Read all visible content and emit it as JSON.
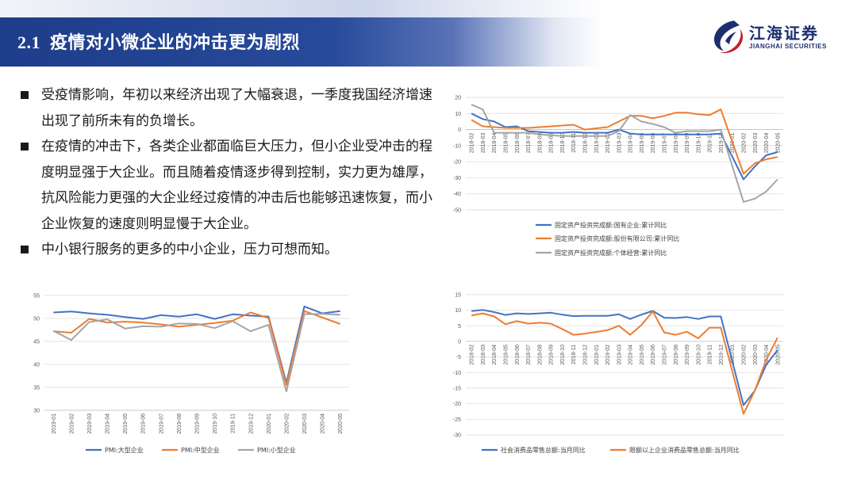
{
  "header": {
    "section_number": "2.1",
    "title": "疫情对小微企业的冲击更为剧烈"
  },
  "logo": {
    "name_cn": "江海证券",
    "name_en": "JIANGHAI SECURITIES"
  },
  "bullets": [
    "受疫情影响，年初以来经济出现了大幅衰退，一季度我国经济增速出现了前所未有的负增长。",
    "在疫情的冲击下，各类企业都面临巨大压力，但小企业受冲击的程度明显强于大企业。而且随着疫情逐步得到控制，实力更为雄厚，抗风险能力更强的大企业经过疫情的冲击后也能够迅速恢复，而小企业恢复的速度则明显慢于大企业。",
    "中小银行服务的更多的中小企业，压力可想而知。"
  ],
  "colors": {
    "blue": "#4472c4",
    "orange": "#ed7d31",
    "gray": "#a5a5a5",
    "header": "#1e3d8a"
  },
  "chart_data": [
    {
      "id": "fai",
      "type": "line",
      "title": "",
      "categories": [
        "2018-02",
        "2018-03",
        "2018-04",
        "2018-05",
        "2018-06",
        "2018-07",
        "2018-08",
        "2018-09",
        "2018-10",
        "2018-11",
        "2018-12",
        "2019-01",
        "2019-02",
        "2019-03",
        "2019-04",
        "2019-05",
        "2019-06",
        "2019-07",
        "2019-08",
        "2019-09",
        "2019-10",
        "2019-11",
        "2019-12",
        "2020-01",
        "2020-02",
        "2020-03",
        "2020-04",
        "2020-05"
      ],
      "ylim": [
        -50,
        20
      ],
      "yticks": [
        20,
        10,
        0,
        -10,
        -20,
        -30,
        -40,
        -50
      ],
      "x_axis_at": 0,
      "legend_position": "bottom",
      "series": [
        {
          "name": "固定资产投资完成额:国有企业:累计同比",
          "color": "#4472c4",
          "values": [
            10,
            6.5,
            5,
            1.5,
            2,
            -1,
            -1.5,
            -2,
            -2,
            -1.5,
            -2,
            null,
            -2,
            0,
            -2.5,
            -3,
            -3,
            -3,
            -3,
            -3,
            -3,
            -3,
            -2.5,
            null,
            -31,
            -23,
            -16,
            -14
          ]
        },
        {
          "name": "固定资产投资完成额:股份有限公司:累计同比",
          "color": "#ed7d31",
          "values": [
            6,
            2,
            1.5,
            1,
            1,
            1,
            1.5,
            2,
            2.5,
            3,
            0,
            null,
            1.5,
            5,
            8.5,
            8.5,
            7,
            8.5,
            10.5,
            10.5,
            9.5,
            9,
            12.5,
            null,
            -27.5,
            -21,
            -18.5,
            -17
          ]
        },
        {
          "name": "固定资产投资完成额:个体经营:累计同比",
          "color": "#a5a5a5",
          "values": [
            15.5,
            12.5,
            -2,
            -2,
            -2,
            -2,
            -3,
            -3.5,
            -4,
            -4,
            -4,
            null,
            -4,
            -1,
            9,
            5,
            3.5,
            1.5,
            -2,
            -1,
            -1,
            -1,
            0,
            null,
            -45,
            -43,
            -38.5,
            -31
          ]
        }
      ]
    },
    {
      "id": "pmi",
      "type": "line",
      "title": "",
      "categories": [
        "2019-01",
        "2019-02",
        "2019-03",
        "2019-04",
        "2019-05",
        "2019-06",
        "2019-07",
        "2019-08",
        "2019-09",
        "2019-10",
        "2019-11",
        "2019-12",
        "2020-01",
        "2020-02",
        "2020-03",
        "2020-04",
        "2020-05"
      ],
      "ylim": [
        30,
        55
      ],
      "yticks": [
        55,
        50,
        45,
        40,
        35,
        30
      ],
      "legend_position": "bottom",
      "series": [
        {
          "name": "PMI:大型企业",
          "color": "#4472c4",
          "values": [
            51.3,
            51.5,
            51.1,
            50.8,
            50.3,
            49.9,
            50.7,
            50.4,
            50.9,
            49.9,
            50.9,
            50.6,
            50.4,
            36.0,
            52.6,
            51.1,
            51.6
          ]
        },
        {
          "name": "PMI:中型企业",
          "color": "#ed7d31",
          "values": [
            47.2,
            46.9,
            49.9,
            49.1,
            49.3,
            49.1,
            48.7,
            48.2,
            48.6,
            49.0,
            49.5,
            51.3,
            50.1,
            35.5,
            51.6,
            50.2,
            48.8
          ]
        },
        {
          "name": "PMI:小型企业",
          "color": "#a5a5a5",
          "values": [
            47.3,
            45.3,
            49.2,
            49.8,
            47.8,
            48.3,
            48.2,
            48.9,
            48.8,
            47.9,
            49.4,
            47.2,
            48.6,
            34.1,
            50.9,
            51.0,
            50.8
          ]
        }
      ]
    },
    {
      "id": "retail",
      "type": "line",
      "title": "",
      "categories": [
        "2018-02",
        "2018-03",
        "2018-04",
        "2018-05",
        "2018-06",
        "2018-07",
        "2018-08",
        "2018-09",
        "2018-10",
        "2018-11",
        "2018-12",
        "2019-01",
        "2019-02",
        "2019-03",
        "2019-04",
        "2019-05",
        "2019-06",
        "2019-07",
        "2019-08",
        "2019-09",
        "2019-10",
        "2019-11",
        "2019-12",
        "2020-01",
        "2020-02",
        "2020-03",
        "2020-04",
        "2020-05"
      ],
      "ylim": [
        -30,
        15
      ],
      "yticks": [
        15,
        10,
        5,
        0,
        -5,
        -10,
        -15,
        -20,
        -25,
        -30
      ],
      "x_axis_at": 0,
      "legend_position": "bottom",
      "series": [
        {
          "name": "社会消费品零售总额:当月同比",
          "color": "#4472c4",
          "values": [
            9.7,
            10.1,
            9.4,
            8.5,
            9.0,
            8.8,
            9.0,
            9.2,
            8.6,
            8.1,
            8.2,
            null,
            8.2,
            8.7,
            7.2,
            8.6,
            9.8,
            7.6,
            7.5,
            7.8,
            7.2,
            8.0,
            8.0,
            null,
            -20.5,
            -15.8,
            -7.5,
            -2.8
          ]
        },
        {
          "name": "限额以上企业消费品零售总额:当月同比",
          "color": "#ed7d31",
          "values": [
            8.3,
            9.0,
            8.0,
            5.5,
            6.5,
            5.7,
            6.0,
            5.7,
            4.0,
            2.1,
            2.5,
            null,
            3.6,
            5.0,
            2.1,
            5.3,
            9.6,
            2.9,
            2.1,
            3.1,
            1.0,
            4.4,
            4.4,
            null,
            -23.3,
            -15.8,
            -5.9,
            1.2
          ]
        }
      ]
    }
  ]
}
